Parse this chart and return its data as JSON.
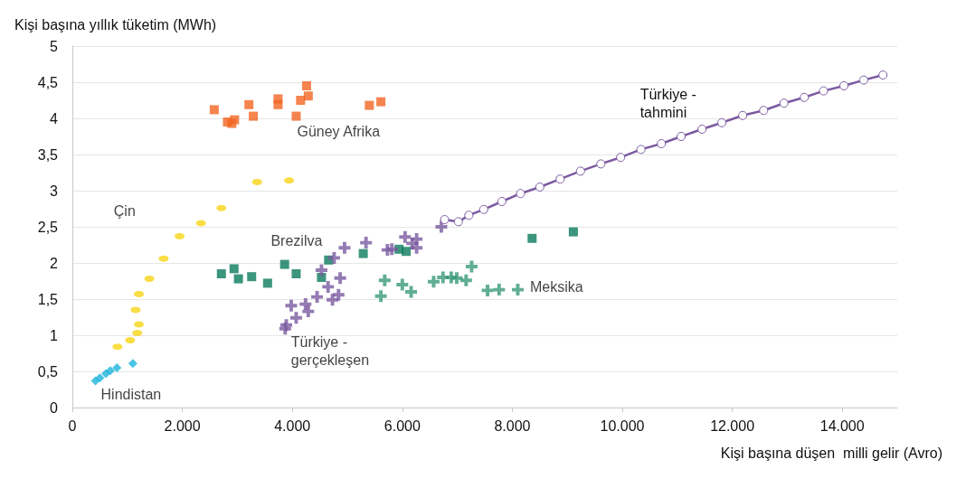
{
  "chart_data": {
    "type": "scatter",
    "xlabel": "Kişi başına düşen  milli gelir (Avro)",
    "ylabel": "Kişi başına yıllık tüketim (MWh)",
    "xlim": [
      0,
      15000
    ],
    "xticks": [
      0,
      {
        "value": 2000,
        "label": "2.000"
      },
      {
        "value": 4000,
        "label": "4.000"
      },
      {
        "value": 6000,
        "label": "6.000"
      },
      {
        "value": 8000,
        "label": "8.000"
      },
      {
        "value": 10000,
        "label": "10.000"
      },
      {
        "value": 12000,
        "label": "12.000"
      },
      {
        "value": 14000,
        "label": "14.000"
      }
    ],
    "ylim": [
      0,
      5
    ],
    "yticks": [
      0,
      {
        "value": 0.5,
        "label": "0,5"
      },
      1,
      {
        "value": 1.5,
        "label": "1,5"
      },
      2,
      {
        "value": 2.5,
        "label": "2,5"
      },
      3,
      {
        "value": 3.5,
        "label": "3,5"
      },
      4,
      {
        "value": 4.5,
        "label": "4,5"
      },
      5
    ],
    "grid": "y",
    "legend": false,
    "series": [
      {
        "name": "Hindistan",
        "color": "#1cb4dc",
        "marker": "diamond",
        "x": [
          420,
          500,
          610,
          690,
          810,
          1100
        ],
        "values": [
          0.37,
          0.41,
          0.47,
          0.51,
          0.55,
          0.61
        ]
      },
      {
        "name": "Çin",
        "color": "#f7d417",
        "marker": "circle",
        "x": [
          820,
          1050,
          1180,
          1210,
          1150,
          1210,
          1400,
          1660,
          1950,
          2340,
          2710,
          3360,
          3940
        ],
        "values": [
          0.84,
          0.93,
          1.03,
          1.15,
          1.35,
          1.57,
          1.78,
          2.06,
          2.37,
          2.55,
          2.76,
          3.12,
          3.14
        ]
      },
      {
        "name": "Güney Afrika",
        "color": "#f26522",
        "marker": "square",
        "x": [
          2580,
          2820,
          2900,
          2950,
          3210,
          3290,
          3740,
          3740,
          4070,
          4150,
          4290,
          4260,
          5400,
          5610
        ],
        "values": [
          4.12,
          3.95,
          3.93,
          3.98,
          4.19,
          4.03,
          4.27,
          4.19,
          4.03,
          4.25,
          4.31,
          4.45,
          4.18,
          4.23
        ]
      },
      {
        "name": "Brezilva",
        "color": "#0b7b5c",
        "marker": "square",
        "x": [
          2710,
          2940,
          3020,
          3260,
          3550,
          3860,
          4070,
          4530,
          4660,
          5290,
          5940,
          6070,
          8360,
          9110
        ],
        "values": [
          1.85,
          1.92,
          1.78,
          1.81,
          1.72,
          1.98,
          1.85,
          1.8,
          2.04,
          2.13,
          2.19,
          2.16,
          2.34,
          2.43
        ]
      },
      {
        "name": "Meksika",
        "color": "#3a9a78",
        "marker": "cross",
        "x": [
          5610,
          5680,
          6000,
          6160,
          6570,
          6740,
          6890,
          6990,
          7160,
          7260,
          7550,
          7760,
          8100
        ],
        "values": [
          1.54,
          1.76,
          1.7,
          1.6,
          1.74,
          1.8,
          1.8,
          1.79,
          1.76,
          1.95,
          1.62,
          1.63,
          1.63
        ]
      },
      {
        "name": "Türkiye - gerçekleşen",
        "color": "#7b5aa0",
        "marker": "cross",
        "x": [
          3870,
          3890,
          4070,
          3980,
          4240,
          4290,
          4450,
          4650,
          4530,
          4760,
          4950,
          4870,
          4840,
          4730,
          5340,
          5730,
          5810,
          6050,
          6260,
          6260,
          6180,
          6710
        ],
        "values": [
          1.09,
          1.14,
          1.24,
          1.41,
          1.43,
          1.33,
          1.53,
          1.67,
          1.9,
          2.07,
          2.21,
          1.79,
          1.56,
          1.49,
          2.28,
          2.18,
          2.19,
          2.36,
          2.33,
          2.21,
          2.27,
          2.5
        ]
      },
      {
        "name": "Türkiye - tahmini",
        "type": "line",
        "color": "#7b5aa0",
        "marker": "circle",
        "x": [
          6770,
          7020,
          7210,
          7480,
          7810,
          8150,
          8500,
          8870,
          9240,
          9610,
          9970,
          10340,
          10710,
          11070,
          11450,
          11810,
          12190,
          12570,
          12940,
          13310,
          13660,
          14030,
          14390,
          14740
        ],
        "values": [
          2.6,
          2.57,
          2.66,
          2.74,
          2.85,
          2.96,
          3.05,
          3.16,
          3.27,
          3.37,
          3.46,
          3.57,
          3.65,
          3.75,
          3.85,
          3.94,
          4.04,
          4.11,
          4.21,
          4.29,
          4.38,
          4.45,
          4.53,
          4.6
        ]
      }
    ]
  }
}
